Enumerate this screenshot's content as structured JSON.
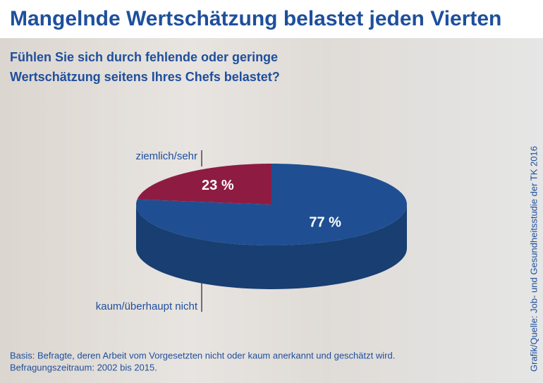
{
  "chart_data": {
    "type": "pie",
    "title": "Mangelnde Wertschätzung belastet jeden Vierten",
    "subtitle": [
      "Fühlen Sie sich durch fehlende oder geringe",
      "Wertschätzung seitens Ihres Chefs belastet?"
    ],
    "categories": [
      "ziemlich/sehr",
      "kaum/überhaupt nicht"
    ],
    "values": [
      23,
      77
    ],
    "value_labels": [
      "23 %",
      "77 %"
    ],
    "colors": [
      "#8e1c42",
      "#1f4f92"
    ],
    "notes": [
      "Basis: Befragte, deren Arbeit vom Vorgesetzten nicht oder kaum anerkannt und geschätzt wird.",
      "Befragungszeitraum: 2002 bis 2015."
    ],
    "source": "Grafik/Quelle: Job- und Gesundheitsstudie der TK 2016"
  }
}
